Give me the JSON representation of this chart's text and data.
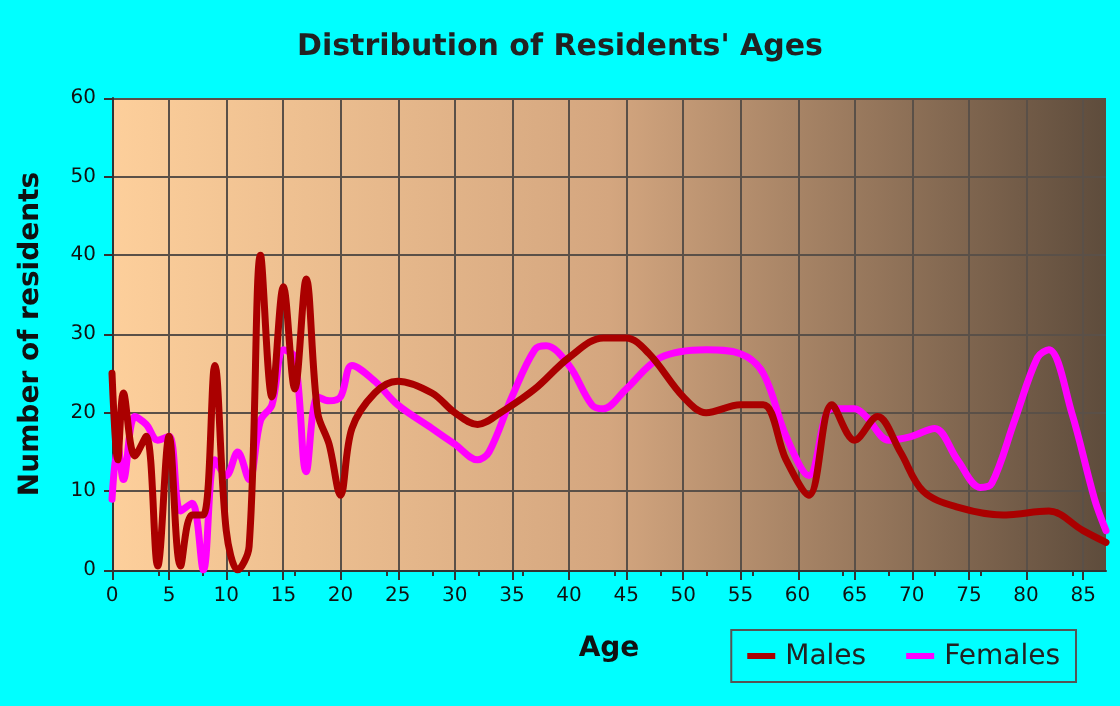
{
  "chart_data": {
    "type": "line",
    "title": "Distribution of Residents' Ages",
    "xlabel": "Age",
    "ylabel": "Number of residents",
    "xlim": [
      0,
      87
    ],
    "xticks": [
      0,
      5,
      10,
      15,
      20,
      25,
      30,
      35,
      40,
      45,
      50,
      55,
      60,
      65,
      70,
      75,
      80,
      85
    ],
    "ylim": [
      0,
      60
    ],
    "yticks": [
      0,
      10,
      20,
      30,
      40,
      50,
      60
    ],
    "grid": true,
    "legend": "bottom right",
    "marker": "none",
    "line_style": "solid",
    "series": [
      {
        "name": "Males",
        "color": "#aa0000",
        "x": [
          0,
          0.5,
          1,
          2,
          3,
          4,
          5,
          6,
          7,
          8,
          9,
          10,
          11,
          12,
          13,
          14,
          15,
          16,
          17,
          18,
          19,
          20,
          21,
          23,
          25,
          28,
          30,
          32,
          34,
          37,
          40,
          43,
          45,
          47,
          50,
          52,
          55,
          57,
          59,
          61,
          63,
          65,
          67,
          69,
          71,
          74,
          78,
          82,
          85,
          87
        ],
        "values": [
          25,
          14,
          22.5,
          14.5,
          17,
          0.5,
          17,
          0.5,
          7,
          7,
          26,
          5,
          0,
          3,
          40,
          22,
          36,
          23,
          37,
          20,
          16,
          9.5,
          18,
          22.5,
          24,
          22.5,
          20,
          18.5,
          20,
          23,
          27,
          29.5,
          29.5,
          27.5,
          22,
          20,
          21,
          21,
          14,
          9.5,
          21,
          16.5,
          19.5,
          15,
          10,
          8,
          7,
          7.5,
          5,
          3.5
        ]
      },
      {
        "name": "Females",
        "color": "#ff00ff",
        "x": [
          0,
          0.5,
          1,
          2,
          3,
          4,
          5,
          6,
          7,
          8,
          9,
          10,
          11,
          12,
          13,
          14,
          15,
          16,
          17,
          18,
          19,
          20,
          21,
          23,
          25,
          28,
          30,
          32,
          33,
          35,
          37,
          38,
          40,
          42,
          43,
          45,
          48,
          52,
          55,
          57,
          59,
          61,
          63,
          65,
          66,
          68,
          70,
          72,
          74,
          76,
          77,
          79,
          81,
          82,
          84,
          86,
          87
        ],
        "values": [
          9,
          16,
          11.5,
          19.5,
          18.5,
          16.5,
          17,
          7.5,
          8.5,
          0,
          14,
          12,
          15,
          11.5,
          19,
          21,
          28,
          27,
          12.5,
          22,
          21.5,
          22,
          26,
          24,
          21,
          18,
          16,
          14,
          15,
          22,
          28,
          28.5,
          26,
          21,
          20.5,
          23,
          27,
          28,
          27.5,
          25,
          17,
          12,
          20.5,
          20.5,
          19.5,
          16.5,
          17,
          18,
          14,
          10.5,
          11,
          19,
          27,
          28,
          20,
          9,
          5
        ]
      }
    ]
  }
}
